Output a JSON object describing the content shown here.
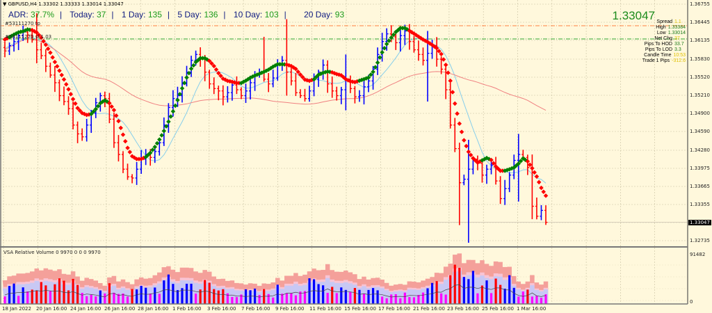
{
  "header": {
    "symbol_info": "GBPUSD,H4  1.33302 1.33333 1.33014 1.33047"
  },
  "adr": {
    "adr_label": "ADR:",
    "adr_value": "37.7%",
    "today_label": "Today:",
    "today_value": "37",
    "d1_label": "1 Day:",
    "d1_value": "135",
    "d5_label": "5 Day:",
    "d5_value": "136",
    "d10_label": "10 Day:",
    "d10_value": "103",
    "d20_label": "20 Day:",
    "d20_value": "93"
  },
  "levels": {
    "tp_label": "#53111270 tp",
    "sl_label": "#53111270 sl 1.03"
  },
  "info_panel": {
    "price": "1.33047",
    "rows": [
      {
        "k": "Spread",
        "v": "1.1",
        "c": "#e0c000"
      },
      {
        "k": "High",
        "v": "1.33384",
        "c": "#1b7b1b"
      },
      {
        "k": "Low",
        "v": "1.33014",
        "c": "#1b7b1b"
      },
      {
        "k": "Net Chg",
        "v": "37",
        "c": "#e0c000"
      },
      {
        "k": "Pips To HOD",
        "v": "33.7",
        "c": "#1b7b1b"
      },
      {
        "k": "Pips To LOD",
        "v": "3.3",
        "c": "#1b7b1b"
      },
      {
        "k": "Candle Time",
        "v": "10:53",
        "c": "#e0c000"
      },
      {
        "k": "Trade 1 Pips",
        "v": "-312.6",
        "c": "#e0c000"
      }
    ]
  },
  "vsa": {
    "title": "VSA Relative Volume 0 9970 0 0 0 9970",
    "max_label": "91482",
    "min_label": "0"
  },
  "colors": {
    "background": "#fff8dc",
    "grid": "#c8c0a0",
    "bull_bar": "#0000ff",
    "bear_bar": "#ff0000",
    "trend_down": "#ff0000",
    "trend_up": "#008000",
    "ma_fast": "#87ceeb",
    "ma_slow": "#f08080",
    "tp_line": "#ff7f3f",
    "sl_line": "#32a832"
  },
  "chart_data": [
    {
      "type": "ohlc",
      "title": "GBPUSD,H4",
      "ylim": [
        1.3258,
        1.369
      ],
      "y_ticks": [
        "1.36755",
        "1.36445",
        "1.36135",
        "1.35830",
        "1.35520",
        "1.35210",
        "1.34900",
        "1.34590",
        "1.34280",
        "1.33975",
        "1.33665",
        "1.33355",
        "1.33047",
        "1.32735"
      ],
      "x_ticks": [
        "18 Jan 2022",
        "20 Jan 16:00",
        "24 Jan 16:00",
        "26 Jan 16:00",
        "28 Jan 16:00",
        "1 Feb 16:00",
        "3 Feb 16:00",
        "7 Feb 16:00",
        "9 Feb 16:00",
        "11 Feb 16:00",
        "15 Feb 16:00",
        "17 Feb 16:00",
        "21 Feb 16:00",
        "23 Feb 16:00",
        "25 Feb 16:00",
        "1 Mar 16:00"
      ],
      "current_price": 1.33047,
      "tp_level": 1.3642,
      "sl_level": 1.3617,
      "close_path": [
        1.3596,
        1.3605,
        1.3612,
        1.3622,
        1.3628,
        1.3623,
        1.3615,
        1.3598,
        1.3588,
        1.357,
        1.3555,
        1.3542,
        1.352,
        1.351,
        1.3498,
        1.347,
        1.3455,
        1.345,
        1.347,
        1.349,
        1.3508,
        1.352,
        1.3515,
        1.348,
        1.344,
        1.342,
        1.3395,
        1.3382,
        1.338,
        1.3395,
        1.3412,
        1.342,
        1.3415,
        1.3425,
        1.344,
        1.347,
        1.35,
        1.3515,
        1.352,
        1.354,
        1.356,
        1.358,
        1.359,
        1.3582,
        1.356,
        1.354,
        1.3532,
        1.3528,
        1.3518,
        1.3525,
        1.3538,
        1.353,
        1.352,
        1.3528,
        1.3542,
        1.3555,
        1.356,
        1.3548,
        1.354,
        1.355,
        1.3572,
        1.358,
        1.356,
        1.3545,
        1.3525,
        1.352,
        1.3515,
        1.3528,
        1.3548,
        1.356,
        1.3572,
        1.354,
        1.3528,
        1.352,
        1.353,
        1.3548,
        1.3532,
        1.3518,
        1.352,
        1.3535,
        1.3545,
        1.3565,
        1.359,
        1.3612,
        1.3625,
        1.362,
        1.361,
        1.3622,
        1.363,
        1.3612,
        1.3598,
        1.359,
        1.358,
        1.3592,
        1.3605,
        1.3582,
        1.3565,
        1.353,
        1.347,
        1.343,
        1.3372,
        1.3378,
        1.3395,
        1.3412,
        1.3405,
        1.3385,
        1.3395,
        1.3402,
        1.3375,
        1.3345,
        1.3362,
        1.3385,
        1.341,
        1.342,
        1.3415,
        1.3398,
        1.3332,
        1.3315,
        1.3325,
        1.33047
      ]
    }
  ]
}
